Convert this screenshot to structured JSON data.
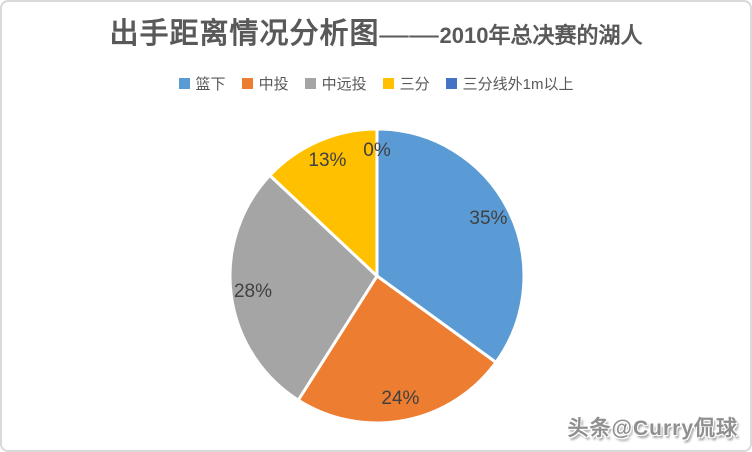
{
  "title": {
    "part1": "出手距离情况分析图——",
    "part2": "2010年总决赛的湖人"
  },
  "watermark": "头条@Curry侃球",
  "chart_data": {
    "type": "pie",
    "title": "出手距离情况分析图——2010年总决赛的湖人",
    "categories": [
      "篮下",
      "中投",
      "中远投",
      "三分",
      "三分线外1m以上"
    ],
    "values": [
      35,
      24,
      28,
      13,
      0
    ],
    "labels": [
      "35%",
      "24%",
      "28%",
      "13%",
      "0%"
    ],
    "unit": "%",
    "colors": [
      "#5B9BD5",
      "#ED7D31",
      "#A5A5A5",
      "#FFC000",
      "#4472C4"
    ],
    "legend_position": "top",
    "start_angle_deg": 0,
    "direction": "clockwise",
    "slice_border_color": "#FFFFFF",
    "label_color": "#404040",
    "title_color": "#595959",
    "legend_text_color": "#595959"
  }
}
